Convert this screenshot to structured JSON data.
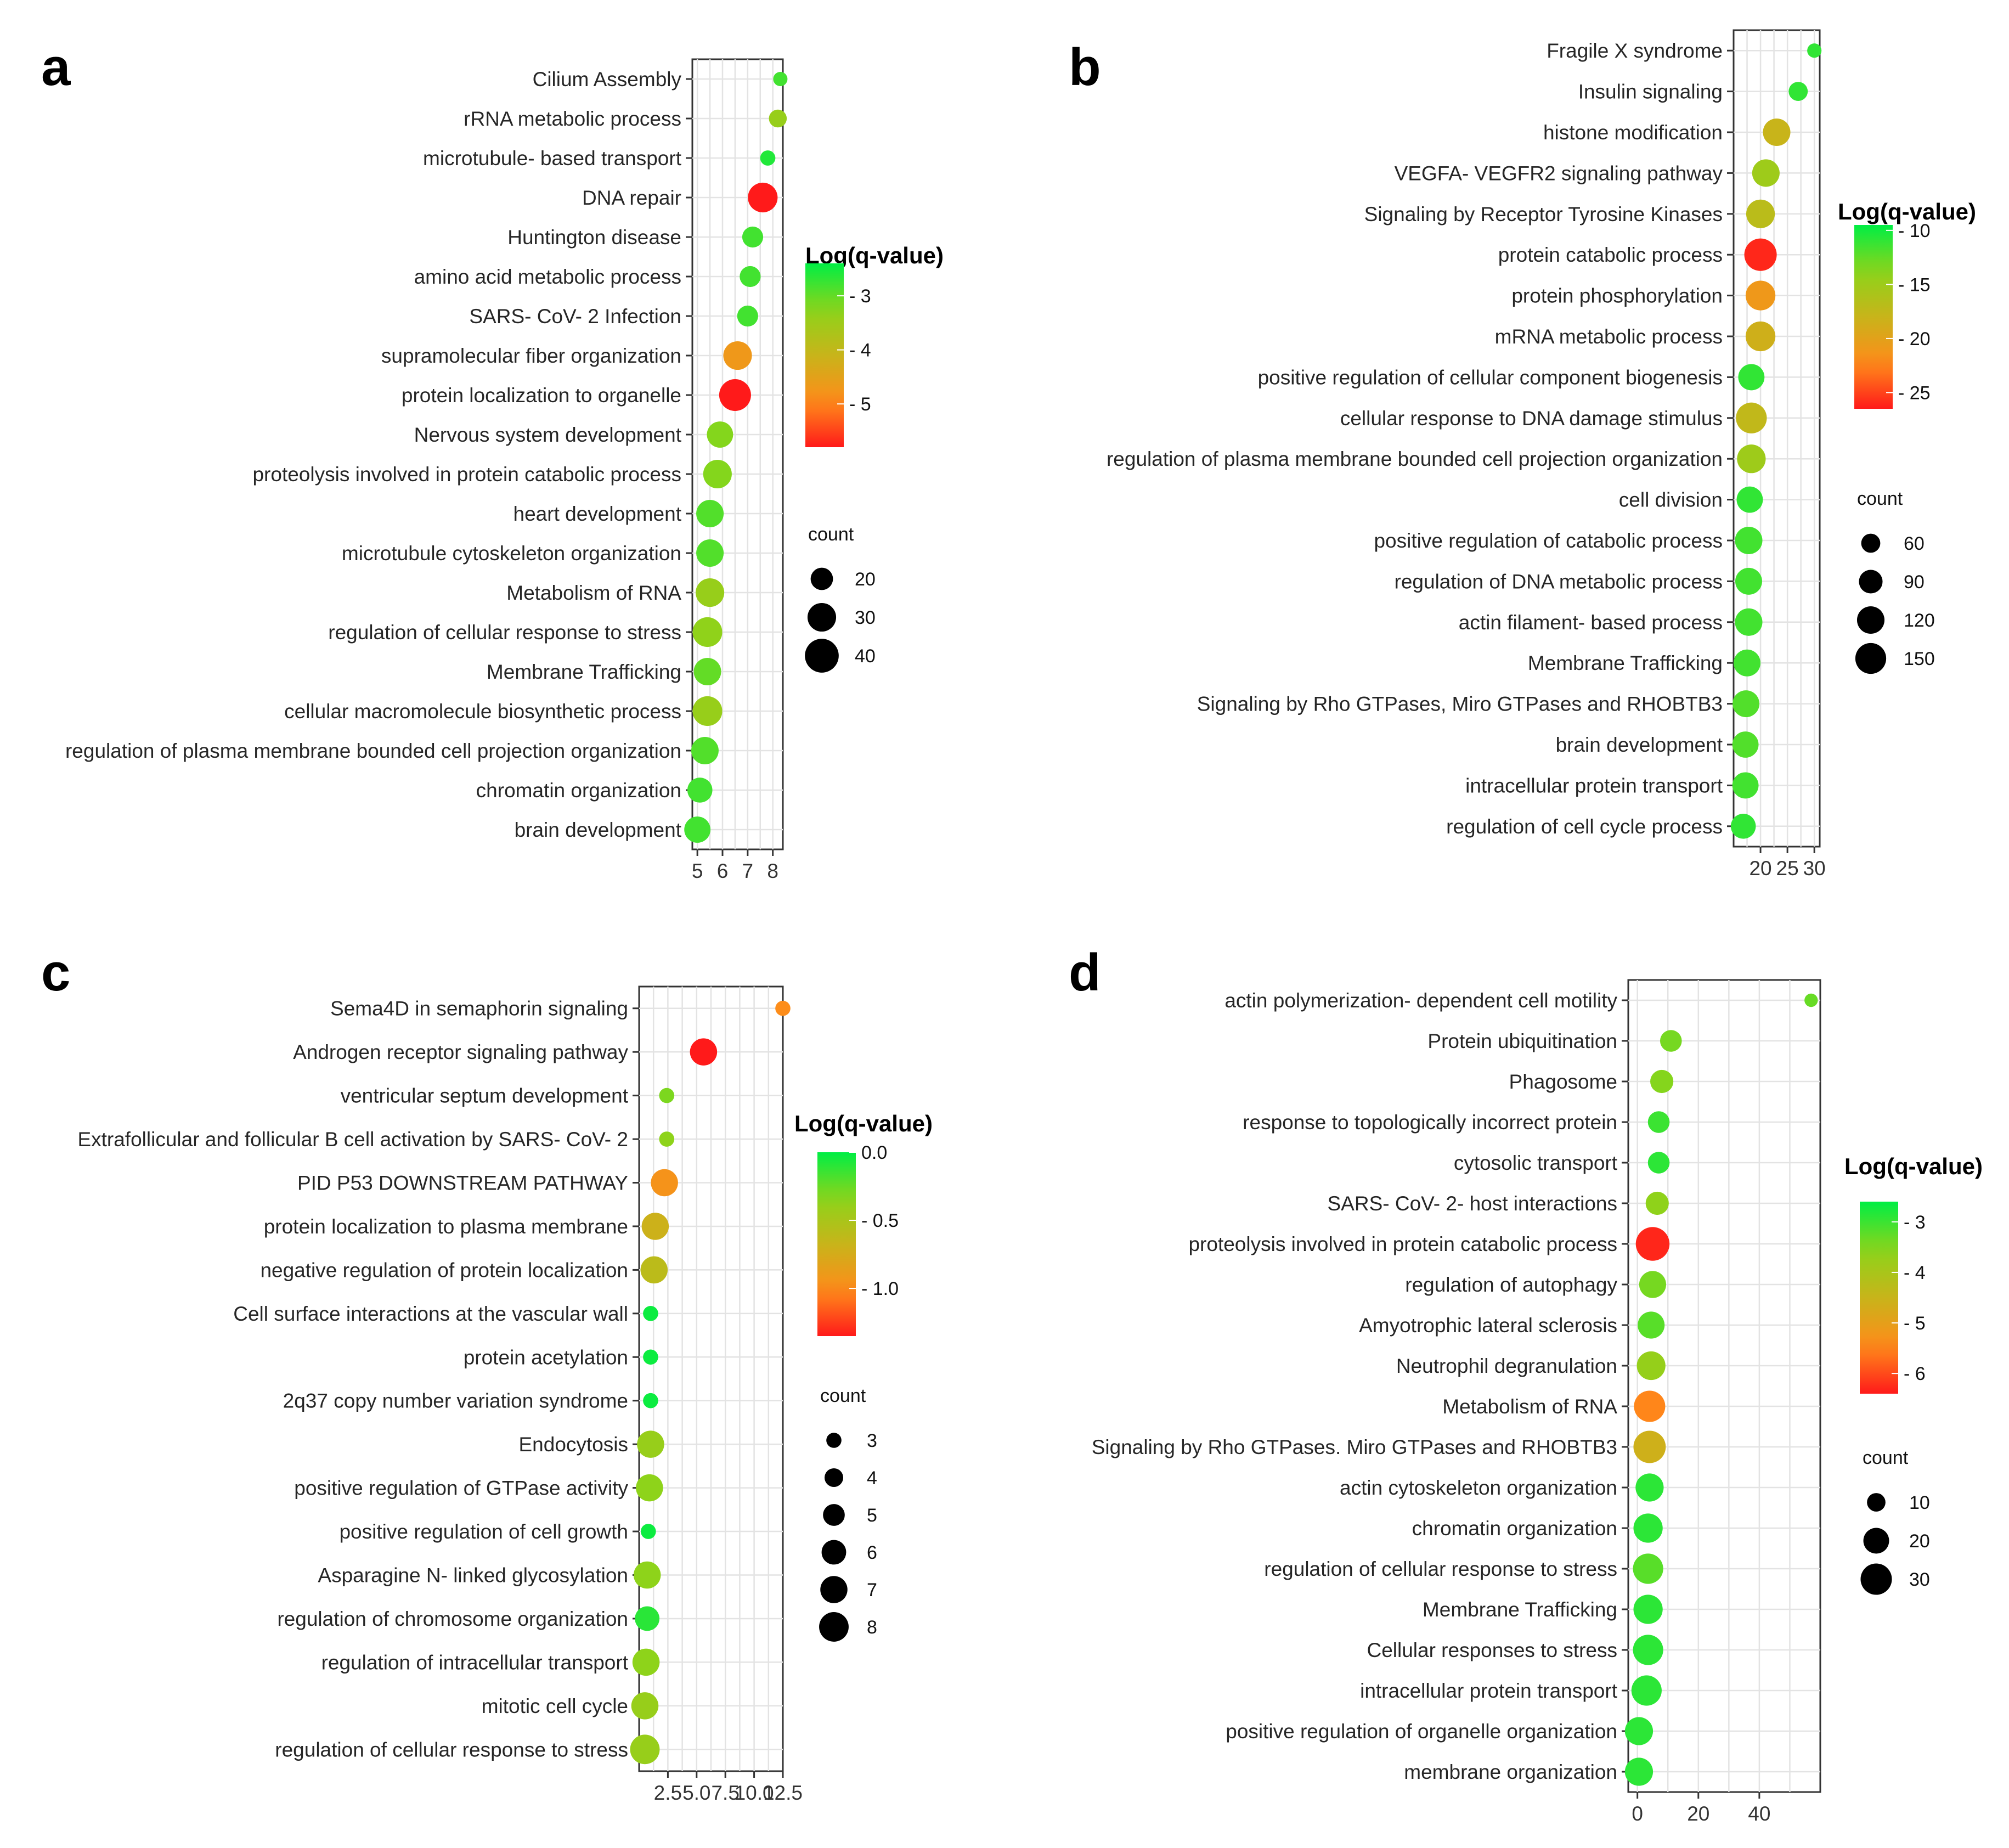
{
  "colors": {
    "low_q": "#00ee44",
    "mid_q": "#b8c41a",
    "high_q": "#ff1a1a",
    "stops": [
      "#ff1a1a",
      "#ff8c1a",
      "#c8b41a",
      "#8cd41a",
      "#00ee44"
    ]
  },
  "chart_data": [
    {
      "panel": "a",
      "type": "scatter",
      "xlabel": "",
      "ylabel": "",
      "xlim": [
        4.8,
        8.4
      ],
      "xticks": [
        5,
        6,
        7,
        8
      ],
      "xtick_labels": [
        "5",
        "6",
        "7",
        "8"
      ],
      "color_title": "Log(q-value)",
      "color_range": [
        -5.8,
        -2.4
      ],
      "color_ticks": [
        -3,
        -4,
        -5
      ],
      "color_tick_labels": [
        "- 3",
        "- 4",
        "- 5"
      ],
      "size_title": "count",
      "size_range": [
        10,
        45
      ],
      "size_ticks": [
        20,
        30,
        40
      ],
      "size_tick_labels": [
        "20",
        "30",
        "40"
      ],
      "terms": [
        "Cilium Assembly",
        "rRNA metabolic process",
        "microtubule- based transport",
        "DNA repair",
        "Huntington disease",
        "amino acid metabolic process",
        "SARS- CoV- 2 Infection",
        "supramolecular fiber organization",
        "protein localization to organelle",
        "Nervous system development",
        "proteolysis involved in protein catabolic process",
        "heart development",
        "microtubule cytoskeleton organization",
        "Metabolism of RNA",
        "regulation of cellular response to stress",
        "Membrane Trafficking",
        "cellular macromolecule biosynthetic process",
        "regulation of plasma membrane bounded cell projection organization",
        "chromatin organization",
        "brain development"
      ],
      "x": [
        8.3,
        8.2,
        7.8,
        7.6,
        7.2,
        7.1,
        7.0,
        6.6,
        6.5,
        5.9,
        5.8,
        5.5,
        5.5,
        5.5,
        5.4,
        5.4,
        5.4,
        5.3,
        5.1,
        5.0
      ],
      "count": [
        10,
        14,
        11,
        32,
        18,
        18,
        18,
        30,
        36,
        26,
        30,
        28,
        28,
        30,
        32,
        28,
        32,
        28,
        24,
        26
      ],
      "log_q": [
        -2.8,
        -3.4,
        -2.6,
        -5.8,
        -2.8,
        -2.8,
        -2.8,
        -4.7,
        -5.8,
        -3.2,
        -3.2,
        -2.9,
        -2.9,
        -3.4,
        -3.3,
        -3.0,
        -3.4,
        -2.9,
        -2.8,
        -2.8
      ]
    },
    {
      "panel": "b",
      "type": "scatter",
      "xlabel": "",
      "ylabel": "",
      "xlim": [
        15,
        31
      ],
      "xticks": [
        20,
        25,
        30
      ],
      "xtick_labels": [
        "20",
        "25",
        "30"
      ],
      "color_title": "Log(q-value)",
      "color_range": [
        -26.5,
        -9.5
      ],
      "color_ticks": [
        -10,
        -15,
        -20,
        -25
      ],
      "color_tick_labels": [
        "- 10",
        "- 15",
        "- 20",
        "- 25"
      ],
      "size_title": "count",
      "size_range": [
        30,
        170
      ],
      "size_ticks": [
        60,
        90,
        120,
        150
      ],
      "size_tick_labels": [
        "60",
        "90",
        "120",
        "150"
      ],
      "terms": [
        "Fragile X syndrome",
        "Insulin signaling",
        "histone modification",
        "VEGFA- VEGFR2 signaling pathway",
        "Signaling by Receptor Tyrosine Kinases",
        "protein catabolic process",
        "protein phosphorylation",
        "mRNA metabolic process",
        "positive regulation of cellular component biogenesis",
        "cellular response to DNA damage stimulus",
        "regulation of plasma membrane bounded cell projection organization",
        "cell division",
        "positive regulation of catabolic process",
        "regulation of DNA metabolic process",
        "actin filament- based process",
        "Membrane Trafficking",
        "Signaling by Rho GTPases, Miro GTPases and RHOBTB3",
        "brain development",
        "intracellular protein transport",
        "regulation of cell cycle process"
      ],
      "x": [
        30.0,
        27.0,
        23.0,
        21.0,
        20.0,
        20.0,
        20.0,
        20.0,
        18.3,
        18.3,
        18.3,
        18.0,
        17.8,
        17.8,
        17.8,
        17.5,
        17.3,
        17.2,
        17.2,
        16.8
      ],
      "count": [
        35,
        60,
        120,
        120,
        130,
        165,
        140,
        140,
        110,
        150,
        130,
        110,
        120,
        115,
        120,
        115,
        115,
        110,
        110,
        100
      ],
      "log_q": [
        -11.0,
        -11.0,
        -18.0,
        -15.0,
        -17.0,
        -26.0,
        -21.0,
        -18.5,
        -11.0,
        -17.5,
        -15.0,
        -11.0,
        -11.5,
        -11.5,
        -11.5,
        -11.5,
        -12.0,
        -12.0,
        -11.5,
        -11.0
      ]
    },
    {
      "panel": "c",
      "type": "scatter",
      "xlabel": "",
      "ylabel": "",
      "xlim": [
        0.0,
        12.5
      ],
      "xticks": [
        2.5,
        5.0,
        7.5,
        10.0,
        12.5
      ],
      "xtick_labels": [
        "2.5",
        "5.0",
        "7.5",
        "10.0",
        "12.5"
      ],
      "color_title": "Log(q-value)",
      "color_range": [
        -1.35,
        0.0
      ],
      "color_ticks": [
        0.0,
        -0.5,
        -1.0
      ],
      "color_tick_labels": [
        "0.0",
        "- 0.5",
        "- 1.0"
      ],
      "size_title": "count",
      "size_range": [
        2,
        9
      ],
      "size_ticks": [
        3,
        4,
        5,
        6,
        7,
        8
      ],
      "size_tick_labels": [
        "3",
        "4",
        "5",
        "6",
        "7",
        "8"
      ],
      "terms": [
        "Sema4D in semaphorin signaling",
        "Androgen receptor signaling pathway",
        "ventricular septum development",
        "Extrafollicular and follicular B cell activation by SARS- CoV- 2",
        "PID P53 DOWNSTREAM PATHWAY",
        "protein localization to plasma membrane",
        "negative regulation of protein localization",
        "Cell surface interactions at the vascular wall",
        "protein acetylation",
        "2q37 copy number variation syndrome",
        "Endocytosis",
        "positive regulation of GTPase activity",
        "positive regulation of cell growth",
        "Asparagine N- linked glycosylation",
        "regulation of chromosome organization",
        "regulation of intracellular transport",
        "mitotic cell cycle",
        "regulation of cellular response to stress"
      ],
      "x": [
        12.5,
        5.6,
        2.4,
        2.4,
        2.2,
        1.4,
        1.3,
        1.0,
        1.0,
        1.0,
        1.0,
        0.9,
        0.8,
        0.7,
        0.7,
        0.6,
        0.5,
        0.5
      ],
      "count": [
        3,
        7,
        3,
        3,
        7,
        7,
        7,
        3,
        3,
        3,
        7,
        7,
        3,
        7,
        6,
        7,
        7,
        8
      ],
      "log_q": [
        -1.0,
        -1.35,
        -0.3,
        -0.35,
        -0.95,
        -0.7,
        -0.6,
        -0.03,
        -0.03,
        -0.03,
        -0.4,
        -0.35,
        -0.03,
        -0.35,
        -0.1,
        -0.35,
        -0.4,
        -0.4
      ]
    },
    {
      "panel": "d",
      "type": "scatter",
      "xlabel": "",
      "ylabel": "",
      "xlim": [
        -3,
        60
      ],
      "xticks": [
        0,
        20,
        40
      ],
      "xtick_labels": [
        "0",
        "20",
        "40"
      ],
      "color_title": "Log(q-value)",
      "color_range": [
        -6.4,
        -2.6
      ],
      "color_ticks": [
        -3,
        -4,
        -5,
        -6
      ],
      "color_tick_labels": [
        "- 3",
        "- 4",
        "- 5",
        "- 6"
      ],
      "size_title": "count",
      "size_range": [
        4,
        38
      ],
      "size_ticks": [
        10,
        20,
        30
      ],
      "size_tick_labels": [
        "10",
        "20",
        "30"
      ],
      "terms": [
        "actin polymerization- dependent cell motility",
        "Protein ubiquitination",
        "Phagosome",
        "response to topologically incorrect protein",
        "cytosolic transport",
        "SARS- CoV- 2- host interactions",
        "proteolysis involved in protein catabolic process",
        "regulation of autophagy",
        "Amyotrophic lateral sclerosis",
        "Neutrophil degranulation",
        "Metabolism of RNA",
        "Signaling by Rho GTPases. Miro GTPases and RHOBTB3",
        "actin cytoskeleton organization",
        "chromatin organization",
        "regulation of cellular response to stress",
        "Membrane Trafficking",
        "Cellular responses to stress",
        "intracellular protein transport",
        "positive regulation of organelle organization",
        "membrane organization"
      ],
      "x": [
        57.0,
        11.0,
        8.0,
        7.0,
        7.0,
        6.5,
        5.0,
        5.0,
        4.5,
        4.5,
        4.0,
        4.0,
        4.0,
        3.5,
        3.5,
        3.5,
        3.5,
        3.0,
        0.5,
        0.5
      ],
      "count": [
        5,
        14,
        16,
        14,
        14,
        16,
        35,
        22,
        22,
        25,
        30,
        32,
        24,
        26,
        28,
        26,
        28,
        28,
        24,
        24
      ],
      "log_q": [
        -3.3,
        -3.4,
        -3.5,
        -3.0,
        -2.9,
        -3.6,
        -6.3,
        -3.4,
        -3.2,
        -3.7,
        -5.5,
        -4.6,
        -2.9,
        -2.9,
        -3.2,
        -2.9,
        -2.9,
        -2.9,
        -2.9,
        -2.9
      ]
    }
  ]
}
